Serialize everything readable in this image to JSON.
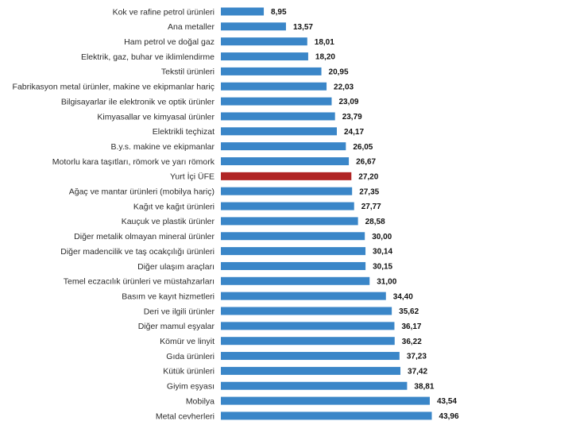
{
  "chart_data": {
    "type": "bar",
    "orientation": "horizontal",
    "title": "",
    "xlabel": "",
    "ylabel": "",
    "grid": false,
    "xlim": [
      0,
      50
    ],
    "default_color": "#3a86c8",
    "highlight_color": "#b02424",
    "highlight_category": "Yurt İçi ÜFE",
    "categories": [
      "Kok ve rafine petrol ürünleri",
      "Ana metaller",
      "Ham petrol ve doğal gaz",
      "Elektrik, gaz, buhar ve iklimlendirme",
      "Tekstil ürünleri",
      "Fabrikasyon metal ürünler, makine ve ekipmanlar hariç",
      "Bilgisayarlar ile elektronik ve optik ürünler",
      "Kimyasallar ve kimyasal ürünler",
      "Elektrikli teçhizat",
      "B.y.s. makine ve ekipmanlar",
      "Motorlu kara taşıtları, römork ve yarı römork",
      "Yurt İçi ÜFE",
      "Ağaç ve mantar ürünleri (mobilya hariç)",
      "Kağıt ve kağıt ürünleri",
      "Kauçuk ve plastik ürünler",
      "Diğer metalik olmayan mineral ürünler",
      "Diğer madencilik ve taş ocakçılığı ürünleri",
      "Diğer ulaşım araçları",
      "Temel eczacılık ürünleri ve müstahzarları",
      "Basım ve kayıt hizmetleri",
      "Deri ve ilgili ürünler",
      "Diğer mamul eşyalar",
      "Kömür ve linyit",
      "Gıda ürünleri",
      "Kütük ürünleri",
      "Giyim eşyası",
      "Mobilya",
      "Metal cevherleri"
    ],
    "values": [
      8.95,
      13.57,
      18.01,
      18.2,
      20.95,
      22.03,
      23.09,
      23.79,
      24.17,
      26.05,
      26.67,
      27.2,
      27.35,
      27.77,
      28.58,
      30.0,
      30.14,
      30.15,
      31.0,
      34.4,
      35.62,
      36.17,
      36.22,
      37.23,
      37.42,
      38.81,
      43.54,
      43.96
    ],
    "value_labels": [
      "8,95",
      "13,57",
      "18,01",
      "18,20",
      "20,95",
      "22,03",
      "23,09",
      "23,79",
      "24,17",
      "26,05",
      "26,67",
      "27,20",
      "27,35",
      "27,77",
      "28,58",
      "30,00",
      "30,14",
      "30,15",
      "31,00",
      "34,40",
      "35,62",
      "36,17",
      "36,22",
      "37,23",
      "37,42",
      "38,81",
      "43,54",
      "43,96"
    ]
  }
}
